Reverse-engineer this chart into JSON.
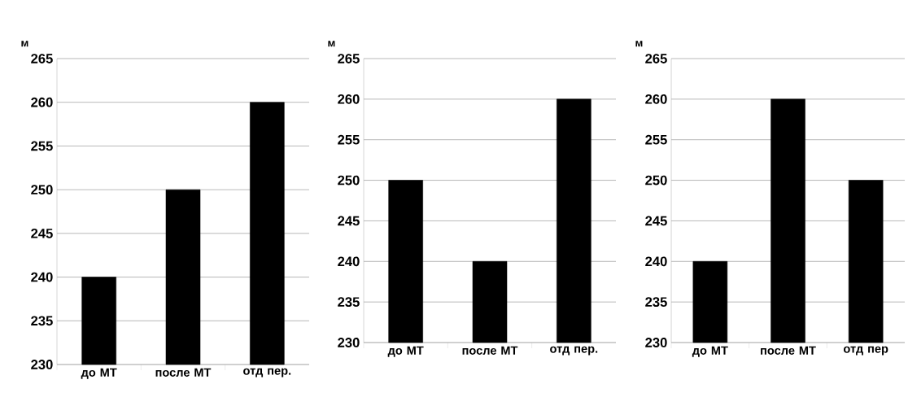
{
  "chart_data": [
    {
      "type": "bar",
      "ylabel": "м",
      "categories": [
        "до МТ",
        "после МТ",
        "отд пер."
      ],
      "values": [
        240,
        250,
        260
      ],
      "color": "#000000",
      "ylim": [
        230,
        265
      ],
      "yticks": [
        230,
        235,
        240,
        245,
        250,
        255,
        260,
        265
      ],
      "grid": "y"
    },
    {
      "type": "bar",
      "ylabel": "м",
      "categories": [
        "до МТ",
        "после МТ",
        "отд пер."
      ],
      "values": [
        250,
        240,
        260
      ],
      "color": "#000000",
      "ylim": [
        230,
        265
      ],
      "yticks": [
        230,
        235,
        240,
        245,
        250,
        255,
        260,
        265
      ],
      "grid": "y"
    },
    {
      "type": "bar",
      "ylabel": "м",
      "categories": [
        "до МТ",
        "после МТ",
        "отд пер"
      ],
      "values": [
        240,
        260,
        250
      ],
      "color": "#000000",
      "ylim": [
        230,
        265
      ],
      "yticks": [
        230,
        235,
        240,
        245,
        250,
        255,
        260,
        265
      ],
      "grid": "y"
    }
  ]
}
